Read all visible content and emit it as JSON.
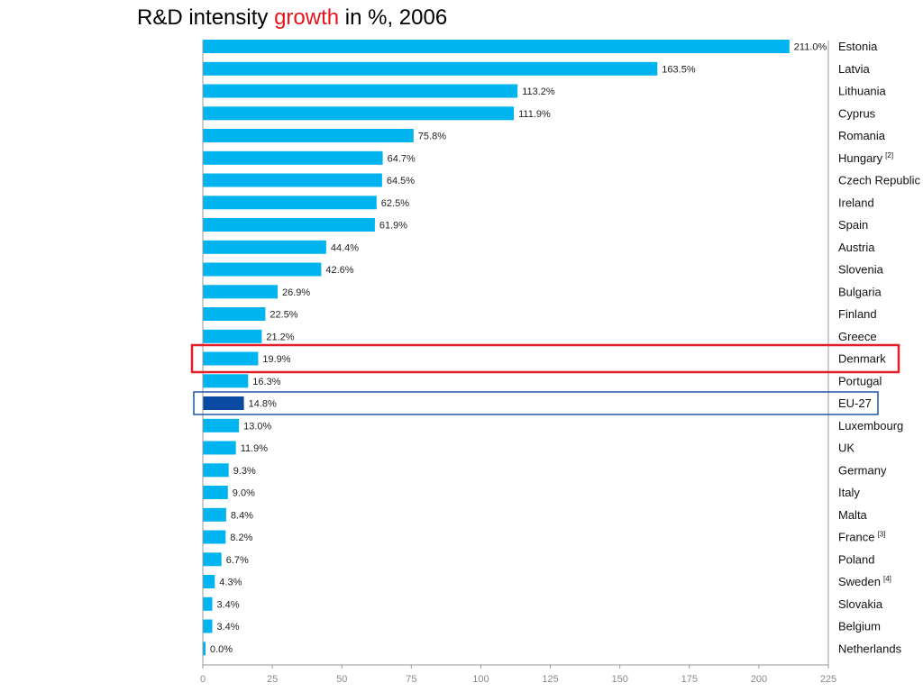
{
  "title": {
    "prefix": "R&D intensity ",
    "highlight": "growth",
    "suffix": " in %, 2006"
  },
  "colors": {
    "bar": "#00b4f0",
    "bar_highlight": "#0b4aa2",
    "red_box": "#e41e26",
    "blue_box": "#1d55a5",
    "axis": "#999999",
    "title_accent": "#e8141b"
  },
  "chart_data": {
    "type": "bar",
    "orientation": "horizontal",
    "title": "R&D intensity growth in %, 2006",
    "xlim": [
      0,
      225
    ],
    "xticks": [
      0,
      25,
      50,
      75,
      100,
      125,
      150,
      175,
      200,
      225
    ],
    "grid": false,
    "categories": [
      "Estonia",
      "Latvia",
      "Lithuania",
      "Cyprus",
      "Romania",
      "Hungary",
      "Czech Republic",
      "Ireland",
      "Spain",
      "Austria",
      "Slovenia",
      "Bulgaria",
      "Finland",
      "Greece",
      "Denmark",
      "Portugal",
      "EU-27",
      "Luxembourg",
      "UK",
      "Germany",
      "Italy",
      "Malta",
      "France",
      "Poland",
      "Sweden",
      "Slovakia",
      "Belgium",
      "Netherlands"
    ],
    "category_notes": [
      "",
      "",
      "",
      "",
      "",
      "[2]",
      "",
      "",
      "",
      "",
      "",
      "",
      "",
      "",
      "",
      "",
      "",
      "",
      "",
      "",
      "",
      "",
      "[3]",
      "",
      "[4]",
      "",
      "",
      ""
    ],
    "values": [
      211.0,
      163.5,
      113.2,
      111.9,
      75.8,
      64.7,
      64.5,
      62.5,
      61.9,
      44.4,
      42.6,
      26.9,
      22.5,
      21.2,
      19.9,
      16.3,
      14.8,
      13.0,
      11.9,
      9.3,
      9.0,
      8.4,
      8.2,
      6.7,
      4.3,
      3.4,
      3.4,
      0.0
    ],
    "value_labels": [
      "211.0%",
      "163.5%",
      "113.2%",
      "111.9%",
      "75.8%",
      "64.7%",
      "64.5%",
      "62.5%",
      "61.9%",
      "44.4%",
      "42.6%",
      "26.9%",
      "22.5%",
      "21.2%",
      "19.9%",
      "16.3%",
      "14.8%",
      "13.0%",
      "11.9%",
      "9.3%",
      "9.0%",
      "8.4%",
      "8.2%",
      "6.7%",
      "4.3%",
      "3.4%",
      "3.4%",
      "0.0%"
    ],
    "highlighted_bar": "EU-27",
    "boxed": [
      {
        "category": "Denmark",
        "color": "red"
      },
      {
        "category": "EU-27",
        "color": "blue"
      }
    ]
  }
}
